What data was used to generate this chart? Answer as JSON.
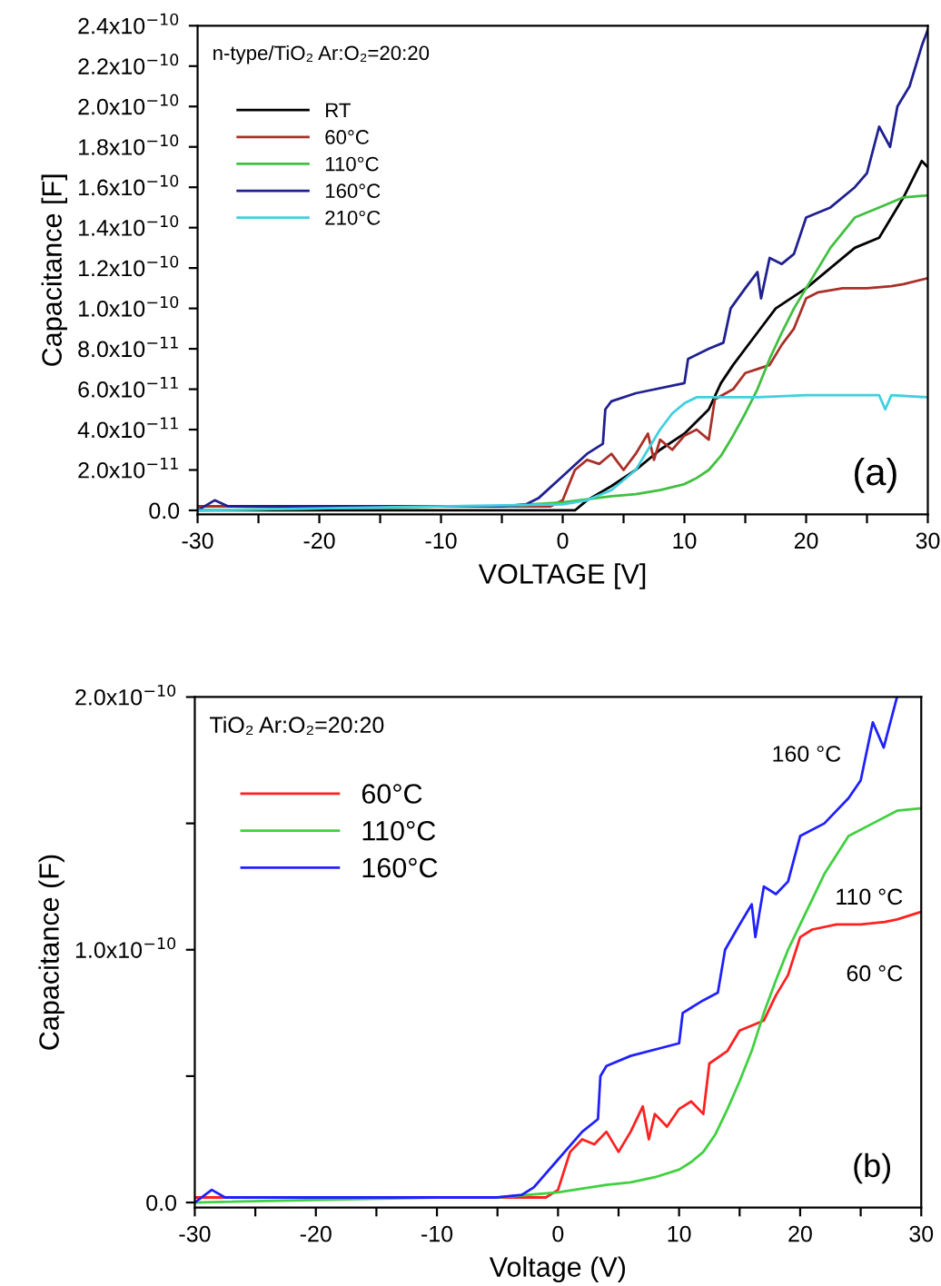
{
  "chart_data": [
    {
      "type": "line",
      "xlabel": "VOLTAGE [V]",
      "ylabel": "Capacitance [F]",
      "legend": "top left",
      "grid": false,
      "marker": "none",
      "line_style": "solid",
      "xlim": [
        -30,
        30
      ],
      "xticks": [
        -30,
        {
          "value": -25,
          "label": null
        },
        -20,
        {
          "value": -15,
          "label": null
        },
        -10,
        {
          "value": -5,
          "label": null
        },
        0,
        {
          "value": 5,
          "label": null
        },
        10,
        {
          "value": 15,
          "label": null
        },
        20,
        {
          "value": 25,
          "label": null
        },
        30
      ],
      "ylim": [
        -2e-12,
        2.4e-10
      ],
      "yticks": [
        {
          "value": 0,
          "label": "0.0"
        },
        {
          "value": 2e-11,
          "label": "2.0x10$^{−11}$"
        },
        {
          "value": 4e-11,
          "label": "4.0x10$^{−11}$"
        },
        {
          "value": 6e-11,
          "label": "6.0x10$^{−11}$"
        },
        {
          "value": 8e-11,
          "label": "8.0x10$^{−11}$"
        },
        {
          "value": 1e-10,
          "label": "1.0x10$^{−10}$"
        },
        {
          "value": 1.2e-10,
          "label": "1.2x10$^{−10}$"
        },
        {
          "value": 1.4e-10,
          "label": "1.4x10$^{−10}$"
        },
        {
          "value": 1.6e-10,
          "label": "1.6x10$^{−10}$"
        },
        {
          "value": 1.8e-10,
          "label": "1.8x10$^{−10}$"
        },
        {
          "value": 2e-10,
          "label": "2.0x10$^{−10}$"
        },
        {
          "value": 2.2e-10,
          "label": "2.2x10$^{−10}$"
        },
        {
          "value": 2.4e-10,
          "label": "2.4x10$^{−10}$"
        }
      ],
      "annotations": [
        "n-type/TiO₂ Ar:O₂=20:20",
        "(a)"
      ],
      "series": [
        {
          "name": "RT",
          "color": "#000000",
          "x": [
            -30,
            0,
            1,
            2,
            4,
            6,
            8,
            10,
            12,
            13,
            14,
            16,
            17.5,
            20,
            22,
            24,
            26,
            27,
            28,
            29.5,
            30
          ],
          "values": [
            0,
            0,
            0,
            5e-12,
            1.2e-11,
            2e-11,
            3e-11,
            3.8e-11,
            5e-11,
            6.3e-11,
            7.2e-11,
            8.8e-11,
            1e-10,
            1.1e-10,
            1.2e-10,
            1.3e-10,
            1.35e-10,
            1.45e-10,
            1.55e-10,
            1.73e-10,
            1.7e-10
          ]
        },
        {
          "name": "60°C",
          "color": "#a83028",
          "x": [
            -30,
            -1,
            0,
            1,
            2,
            3,
            4,
            5,
            6,
            7,
            7.5,
            8,
            9,
            10,
            11,
            12,
            12.5,
            14,
            15,
            16,
            17,
            18,
            19,
            20,
            21,
            23,
            25,
            27,
            28,
            30
          ],
          "values": [
            2e-12,
            2e-12,
            5e-12,
            2e-11,
            2.5e-11,
            2.3e-11,
            2.8e-11,
            2e-11,
            2.8e-11,
            3.8e-11,
            2.5e-11,
            3.5e-11,
            3e-11,
            3.7e-11,
            4e-11,
            3.5e-11,
            5.5e-11,
            6e-11,
            6.8e-11,
            7e-11,
            7.2e-11,
            8.2e-11,
            9e-11,
            1.05e-10,
            1.08e-10,
            1.1e-10,
            1.1e-10,
            1.11e-10,
            1.12e-10,
            1.15e-10
          ]
        },
        {
          "name": "110°C",
          "color": "#40c040",
          "x": [
            -30,
            -10,
            -5,
            0,
            4,
            6,
            8,
            10,
            11,
            12,
            13,
            14,
            15,
            16,
            17,
            18,
            19,
            20,
            22,
            24,
            26,
            28,
            30
          ],
          "values": [
            0,
            2e-12,
            2e-12,
            4e-12,
            7e-12,
            8e-12,
            1e-11,
            1.3e-11,
            1.6e-11,
            2e-11,
            2.7e-11,
            3.7e-11,
            4.8e-11,
            6e-11,
            7.5e-11,
            8.8e-11,
            1e-10,
            1.1e-10,
            1.3e-10,
            1.45e-10,
            1.5e-10,
            1.55e-10,
            1.56e-10
          ]
        },
        {
          "name": "160°C",
          "color": "#202090",
          "x": [
            -30,
            -28.6,
            -27.5,
            -5,
            -3,
            -2,
            0,
            2,
            3.3,
            3.5,
            4,
            6,
            10,
            10.3,
            12,
            13.2,
            13.8,
            15,
            16,
            16.3,
            17,
            18,
            19,
            20,
            22,
            24,
            25,
            26,
            26.9,
            27.5,
            28.5,
            29.5,
            30
          ],
          "values": [
            0,
            5e-12,
            2e-12,
            2e-12,
            3e-12,
            6e-12,
            1.7e-11,
            2.8e-11,
            3.3e-11,
            5e-11,
            5.4e-11,
            5.8e-11,
            6.3e-11,
            7.5e-11,
            8e-11,
            8.3e-11,
            1e-10,
            1.1e-10,
            1.18e-10,
            1.05e-10,
            1.25e-10,
            1.22e-10,
            1.27e-10,
            1.45e-10,
            1.5e-10,
            1.6e-10,
            1.67e-10,
            1.9e-10,
            1.8e-10,
            2e-10,
            2.1e-10,
            2.3e-10,
            2.38e-10
          ]
        },
        {
          "name": "210°C",
          "color": "#40d0e0",
          "x": [
            -30,
            0,
            2,
            4,
            6,
            7,
            8,
            9,
            10,
            11,
            12,
            16,
            20,
            25,
            26,
            26.5,
            27,
            30
          ],
          "values": [
            0,
            3e-12,
            5e-12,
            1e-11,
            2e-11,
            3e-11,
            4e-11,
            4.8e-11,
            5.3e-11,
            5.6e-11,
            5.6e-11,
            5.6e-11,
            5.7e-11,
            5.7e-11,
            5.7e-11,
            5e-11,
            5.7e-11,
            5.6e-11
          ]
        }
      ]
    },
    {
      "type": "line",
      "xlabel": "Voltage (V)",
      "ylabel": "Capacitance (F)",
      "legend": "top left",
      "grid": false,
      "marker": "none",
      "line_style": "solid",
      "xlim": [
        -30,
        30
      ],
      "xticks": [
        -30,
        {
          "value": -25,
          "label": null
        },
        -20,
        {
          "value": -15,
          "label": null
        },
        -10,
        {
          "value": -5,
          "label": null
        },
        0,
        {
          "value": 5,
          "label": null
        },
        10,
        {
          "value": 15,
          "label": null
        },
        20,
        {
          "value": 25,
          "label": null
        },
        30
      ],
      "ylim": [
        -2e-12,
        2e-10
      ],
      "yticks": [
        {
          "value": 0,
          "label": "0.0"
        },
        {
          "value": 5e-11,
          "label": null
        },
        {
          "value": 1e-10,
          "label": "1.0x10$^{−10}$"
        },
        {
          "value": 1.5e-10,
          "label": null
        },
        {
          "value": 2e-10,
          "label": "2.0x10$^{−10}$"
        }
      ],
      "annotations": [
        "TiO₂ Ar:O₂=20:20",
        "(b)",
        "160 °C",
        "110 °C",
        "60 °C"
      ],
      "series": [
        {
          "name": "60°C",
          "color": "#ff2020",
          "x": [
            -30,
            -1,
            0,
            1,
            2,
            3,
            4,
            5,
            6,
            7,
            7.5,
            8,
            9,
            10,
            11,
            12,
            12.5,
            14,
            15,
            16,
            17,
            18,
            19,
            20,
            21,
            23,
            25,
            27,
            28,
            30
          ],
          "values": [
            2e-12,
            2e-12,
            5e-12,
            2e-11,
            2.5e-11,
            2.3e-11,
            2.8e-11,
            2e-11,
            2.8e-11,
            3.8e-11,
            2.5e-11,
            3.5e-11,
            3e-11,
            3.7e-11,
            4e-11,
            3.5e-11,
            5.5e-11,
            6e-11,
            6.8e-11,
            7e-11,
            7.2e-11,
            8.2e-11,
            9e-11,
            1.05e-10,
            1.08e-10,
            1.1e-10,
            1.1e-10,
            1.11e-10,
            1.12e-10,
            1.15e-10
          ]
        },
        {
          "name": "110°C",
          "color": "#40d040",
          "x": [
            -30,
            -10,
            -5,
            0,
            4,
            6,
            8,
            10,
            11,
            12,
            13,
            14,
            15,
            16,
            17,
            18,
            19,
            20,
            22,
            24,
            26,
            28,
            30
          ],
          "values": [
            0,
            2e-12,
            2e-12,
            4e-12,
            7e-12,
            8e-12,
            1e-11,
            1.3e-11,
            1.6e-11,
            2e-11,
            2.7e-11,
            3.7e-11,
            4.8e-11,
            6e-11,
            7.5e-11,
            8.8e-11,
            1e-10,
            1.1e-10,
            1.3e-10,
            1.45e-10,
            1.5e-10,
            1.55e-10,
            1.56e-10
          ]
        },
        {
          "name": "160°C",
          "color": "#2020ff",
          "x": [
            -30,
            -28.6,
            -27.5,
            -5,
            -3,
            -2,
            0,
            2,
            3.3,
            3.5,
            4,
            6,
            10,
            10.3,
            12,
            13.2,
            13.8,
            15,
            16,
            16.3,
            17,
            18,
            19,
            20,
            22,
            24,
            25,
            26,
            26.9,
            28
          ],
          "values": [
            0,
            5e-12,
            2e-12,
            2e-12,
            3e-12,
            6e-12,
            1.7e-11,
            2.8e-11,
            3.3e-11,
            5e-11,
            5.4e-11,
            5.8e-11,
            6.3e-11,
            7.5e-11,
            8e-11,
            8.3e-11,
            1e-10,
            1.1e-10,
            1.18e-10,
            1.05e-10,
            1.25e-10,
            1.22e-10,
            1.27e-10,
            1.45e-10,
            1.5e-10,
            1.6e-10,
            1.67e-10,
            1.9e-10,
            1.8e-10,
            2e-10
          ]
        }
      ]
    }
  ]
}
